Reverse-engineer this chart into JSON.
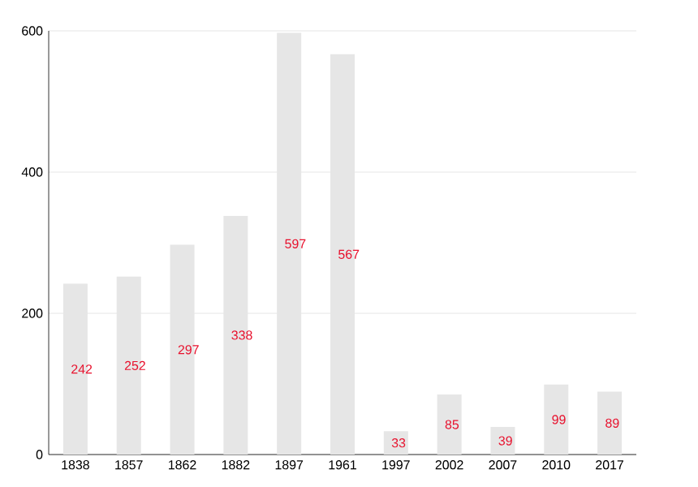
{
  "chart_data": {
    "type": "bar",
    "categories": [
      "1838",
      "1857",
      "1862",
      "1882",
      "1897",
      "1961",
      "1997",
      "2002",
      "2007",
      "2010",
      "2017"
    ],
    "values": [
      242,
      252,
      297,
      338,
      597,
      567,
      33,
      85,
      39,
      99,
      89
    ],
    "color": "#e6e6e6",
    "ylim": [
      0,
      600
    ],
    "yticks": [
      0,
      200,
      400,
      600
    ],
    "grid": "y",
    "data_labels": true
  }
}
